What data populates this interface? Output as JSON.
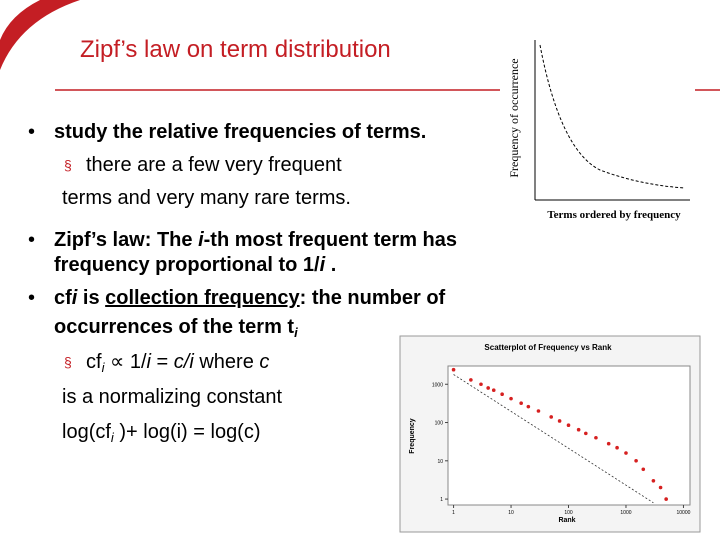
{
  "slide": {
    "title": "Zipf’s law on term distribution",
    "bullet_1": [
      "study the relative frequencies of terms."
    ],
    "sub_1": [
      "there are a few very frequent",
      "terms and very many rare terms."
    ],
    "bullet_2": [
      "Zipf’s law: The ",
      "i",
      "-th most frequent term has",
      "frequency proportional to 1/",
      "i",
      " ."
    ],
    "bullet_3": [
      "cf",
      "i",
      " is ",
      "collection frequency",
      ": the number of",
      "occurrences of the term t",
      "i"
    ],
    "sub_3": [
      "cf",
      "i",
      " ∝ 1/",
      "i",
      " = ",
      "c/i",
      " where ",
      "c",
      "is a normalizing constant",
      "log(cf",
      "i",
      " )+ log(i) = log(c)"
    ]
  },
  "schematic": {
    "y_label": "Frequency of occurrence",
    "x_label": "Terms ordered by frequency"
  },
  "chart_data": {
    "type": "scatter",
    "title": "Scatterplot of Frequency vs Rank",
    "x_label": "Rank",
    "y_label": "Frequency",
    "log_x": true,
    "log_y": true,
    "color": "#d62020",
    "line_color": "#333333",
    "xlim": [
      0.8,
      13000
    ],
    "ylim": [
      0.7,
      3000
    ],
    "xticks": [
      1,
      10,
      100,
      1000,
      10000
    ],
    "yticks": [
      1,
      10,
      100,
      1000
    ],
    "points": {
      "x": [
        1,
        2,
        3,
        4,
        5,
        7,
        10,
        15,
        20,
        30,
        50,
        70,
        100,
        150,
        200,
        300,
        500,
        700,
        1000,
        1500,
        2000,
        3000,
        4000,
        5000
      ],
      "y": [
        2400,
        1300,
        1000,
        800,
        700,
        550,
        420,
        320,
        260,
        200,
        140,
        110,
        85,
        65,
        52,
        40,
        28,
        22,
        16,
        10,
        6,
        3,
        2,
        1
      ]
    },
    "reference_line": {
      "x": [
        1,
        3000
      ],
      "y": [
        1800,
        0.8
      ]
    }
  }
}
